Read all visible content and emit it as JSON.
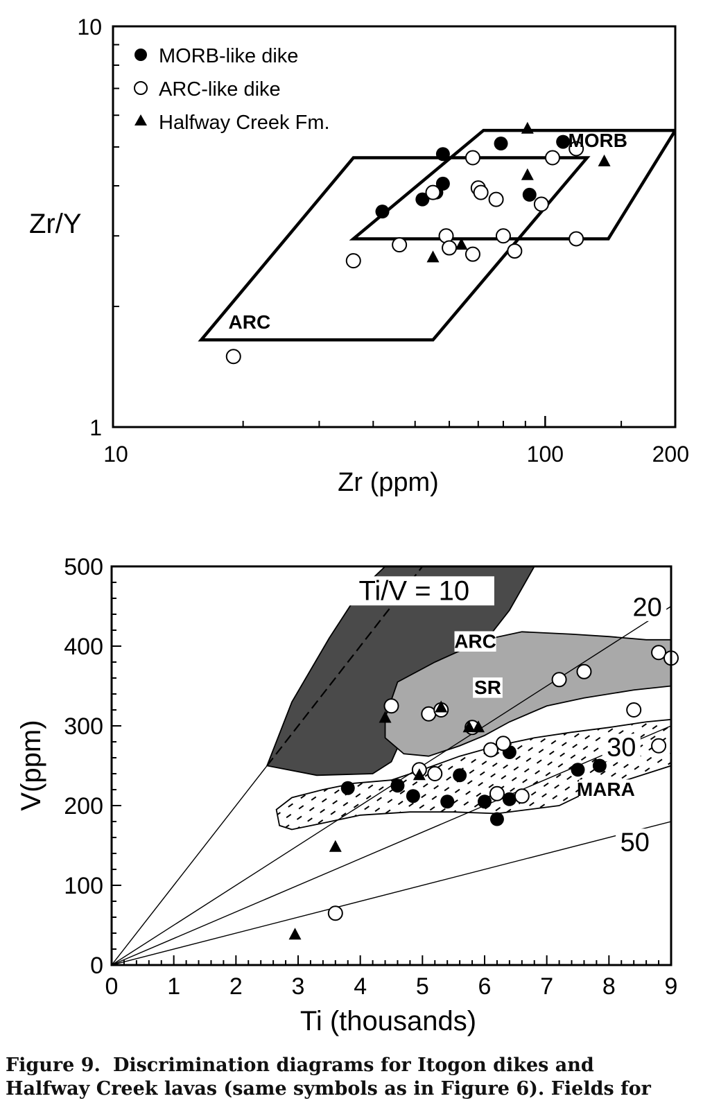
{
  "chart_data": [
    {
      "type": "scatter",
      "title": "",
      "xlabel": "Zr (ppm)",
      "ylabel": "Zr/Y",
      "xscale": "log",
      "yscale": "log",
      "xlim": [
        10,
        200
      ],
      "ylim": [
        1,
        10
      ],
      "x_tick_labels": [
        "10",
        "100",
        "200"
      ],
      "y_tick_labels": [
        "1",
        "10"
      ],
      "legend_placement": "top-left",
      "series": [
        {
          "name": "MORB-like dike",
          "marker": "filled-circle",
          "points": [
            [
              58,
              4.8
            ],
            [
              79,
              5.1
            ],
            [
              110,
              5.15
            ],
            [
              58,
              4.05
            ],
            [
              56,
              3.85
            ],
            [
              52,
              3.7
            ],
            [
              42,
              3.45
            ],
            [
              92,
              3.8
            ]
          ]
        },
        {
          "name": "ARC-like dike",
          "marker": "open-circle",
          "points": [
            [
              19,
              1.5
            ],
            [
              36,
              2.6
            ],
            [
              46,
              2.85
            ],
            [
              55,
              3.85
            ],
            [
              59,
              3.0
            ],
            [
              60,
              2.8
            ],
            [
              68,
              4.7
            ],
            [
              70,
              3.95
            ],
            [
              71,
              3.85
            ],
            [
              68,
              2.7
            ],
            [
              77,
              3.7
            ],
            [
              80,
              3.0
            ],
            [
              85,
              2.75
            ],
            [
              98,
              3.6
            ],
            [
              104,
              4.7
            ],
            [
              118,
              4.95
            ],
            [
              118,
              2.95
            ]
          ]
        },
        {
          "name": "Halfway Creek Fm.",
          "marker": "filled-triangle",
          "points": [
            [
              91,
              5.55
            ],
            [
              91,
              4.25
            ],
            [
              55,
              2.65
            ],
            [
              64,
              2.85
            ],
            [
              137,
              4.6
            ]
          ]
        }
      ],
      "fields": [
        {
          "label": "MORB",
          "polygon": [
            [
              72,
              5.5
            ],
            [
              200,
              5.5
            ],
            [
              140,
              2.95
            ],
            [
              36,
              2.95
            ]
          ]
        },
        {
          "label": "ARC",
          "polygon": [
            [
              36,
              4.7
            ],
            [
              125,
              4.7
            ],
            [
              55,
              1.65
            ],
            [
              16,
              1.65
            ]
          ]
        }
      ]
    },
    {
      "type": "scatter",
      "title": "",
      "xlabel": "Ti (thousands)",
      "ylabel": "V(ppm)",
      "xlim": [
        0,
        9
      ],
      "ylim": [
        0,
        500
      ],
      "x_ticks": [
        0,
        1,
        2,
        3,
        4,
        5,
        6,
        7,
        8,
        9
      ],
      "y_ticks": [
        0,
        100,
        200,
        300,
        400,
        500
      ],
      "fields": [
        {
          "label": "ARC",
          "fill": "#4a4a4a",
          "polygon": [
            [
              2.5,
              250
            ],
            [
              2.9,
              330
            ],
            [
              3.5,
              410
            ],
            [
              4.0,
              470
            ],
            [
              4.4,
              500
            ],
            [
              6.8,
              500
            ],
            [
              6.4,
              445
            ],
            [
              6.0,
              405
            ],
            [
              5.5,
              380
            ],
            [
              5.0,
              345
            ],
            [
              4.7,
              290
            ],
            [
              4.5,
              255
            ],
            [
              4.2,
              240
            ],
            [
              3.3,
              238
            ],
            [
              2.5,
              250
            ]
          ]
        },
        {
          "label": "SR",
          "fill": "#a9a9a9",
          "polygon": [
            [
              4.4,
              310
            ],
            [
              4.6,
              355
            ],
            [
              5.2,
              380
            ],
            [
              6.0,
              408
            ],
            [
              6.6,
              418
            ],
            [
              7.4,
              415
            ],
            [
              8.0,
              412
            ],
            [
              8.6,
              408
            ],
            [
              9,
              408
            ],
            [
              9,
              350
            ],
            [
              8.4,
              345
            ],
            [
              7.6,
              335
            ],
            [
              7.0,
              325
            ],
            [
              6.4,
              305
            ],
            [
              6.0,
              288
            ],
            [
              5.6,
              275
            ],
            [
              5.1,
              262
            ],
            [
              4.7,
              265
            ],
            [
              4.4,
              285
            ],
            [
              4.4,
              310
            ]
          ]
        },
        {
          "label": "MARA",
          "fill": "#ffffff",
          "polygon": [
            [
              2.9,
              170
            ],
            [
              2.7,
              175
            ],
            [
              2.65,
              195
            ],
            [
              2.9,
              210
            ],
            [
              3.4,
              220
            ],
            [
              3.9,
              228
            ],
            [
              4.5,
              232
            ],
            [
              5.0,
              245
            ],
            [
              5.6,
              262
            ],
            [
              6.2,
              275
            ],
            [
              6.8,
              285
            ],
            [
              7.4,
              292
            ],
            [
              8.0,
              298
            ],
            [
              8.6,
              305
            ],
            [
              9,
              308
            ],
            [
              9,
              250
            ],
            [
              8.6,
              240
            ],
            [
              8.0,
              225
            ],
            [
              7.6,
              215
            ],
            [
              7.2,
              200
            ],
            [
              6.7,
              195
            ],
            [
              6.2,
              190
            ],
            [
              5.5,
              192
            ],
            [
              4.8,
              192
            ],
            [
              4.0,
              188
            ],
            [
              3.4,
              178
            ],
            [
              2.9,
              170
            ]
          ]
        }
      ],
      "reference_lines": [
        {
          "label": "Ti/V = 10",
          "ratio": 10
        },
        {
          "label": "20",
          "ratio": 20
        },
        {
          "label": "30",
          "ratio": 30
        },
        {
          "label": "50",
          "ratio": 50
        }
      ],
      "series": [
        {
          "name": "MORB-like dike",
          "marker": "filled-circle",
          "points": [
            [
              3.8,
              222
            ],
            [
              4.6,
              225
            ],
            [
              4.85,
              212
            ],
            [
              5.4,
              205
            ],
            [
              5.6,
              238
            ],
            [
              6.0,
              205
            ],
            [
              6.2,
              183
            ],
            [
              6.4,
              208
            ],
            [
              6.4,
              267
            ],
            [
              7.5,
              245
            ],
            [
              7.85,
              250
            ]
          ]
        },
        {
          "name": "ARC-like dike",
          "marker": "open-circle",
          "points": [
            [
              3.6,
              65
            ],
            [
              4.5,
              325
            ],
            [
              5.1,
              315
            ],
            [
              5.3,
              320
            ],
            [
              5.8,
              298
            ],
            [
              4.95,
              245
            ],
            [
              5.2,
              240
            ],
            [
              6.1,
              270
            ],
            [
              6.3,
              278
            ],
            [
              6.2,
              215
            ],
            [
              6.6,
              212
            ],
            [
              7.2,
              358
            ],
            [
              7.6,
              368
            ],
            [
              8.4,
              320
            ],
            [
              8.8,
              392
            ],
            [
              9.0,
              385
            ],
            [
              8.8,
              275
            ]
          ]
        },
        {
          "name": "Halfway Creek Fm.",
          "marker": "filled-triangle",
          "points": [
            [
              2.95,
              38
            ],
            [
              3.6,
              148
            ],
            [
              4.4,
              310
            ],
            [
              5.3,
              323
            ],
            [
              5.75,
              298
            ],
            [
              5.9,
              298
            ],
            [
              4.95,
              238
            ]
          ]
        }
      ]
    }
  ],
  "caption": {
    "label": "Figure 9.",
    "line1": "Discrimination diagrams for Itogon dikes and",
    "line2": "Halfway Creek lavas (same symbols as in Figure 6). Fields for"
  },
  "colors": {
    "ink": "#000000",
    "arc_field": "#4a4a4a",
    "sr_field": "#a9a9a9"
  }
}
